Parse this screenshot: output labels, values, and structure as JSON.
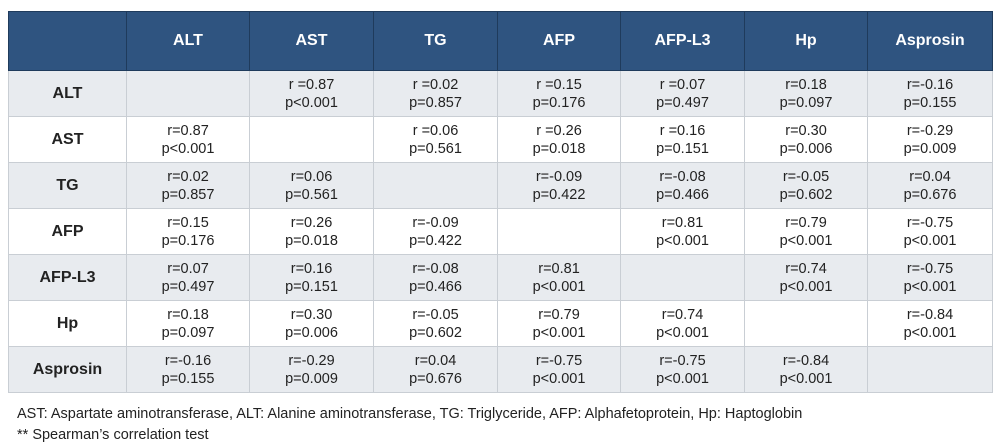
{
  "table": {
    "columns": [
      "",
      "ALT",
      "AST",
      "TG",
      "AFP",
      "AFP-L3",
      "Hp",
      "Asprosin"
    ],
    "rows": [
      {
        "label": "ALT",
        "cells": [
          {
            "r": "",
            "p": ""
          },
          {
            "r": "r =0.87",
            "p": "p<0.001"
          },
          {
            "r": "r =0.02",
            "p": "p=0.857"
          },
          {
            "r": "r =0.15",
            "p": "p=0.176"
          },
          {
            "r": "r =0.07",
            "p": "p=0.497"
          },
          {
            "r": "r=0.18",
            "p": "p=0.097"
          },
          {
            "r": "r=-0.16",
            "p": "p=0.155"
          }
        ]
      },
      {
        "label": "AST",
        "cells": [
          {
            "r": "r=0.87",
            "p": "p<0.001"
          },
          {
            "r": "",
            "p": ""
          },
          {
            "r": "r =0.06",
            "p": "p=0.561"
          },
          {
            "r": "r =0.26",
            "p": "p=0.018"
          },
          {
            "r": "r =0.16",
            "p": "p=0.151"
          },
          {
            "r": "r=0.30",
            "p": "p=0.006"
          },
          {
            "r": "r=-0.29",
            "p": "p=0.009"
          }
        ]
      },
      {
        "label": "TG",
        "cells": [
          {
            "r": "r=0.02",
            "p": "p=0.857"
          },
          {
            "r": "r=0.06",
            "p": "p=0.561"
          },
          {
            "r": "",
            "p": ""
          },
          {
            "r": "r=-0.09",
            "p": "p=0.422"
          },
          {
            "r": "r=-0.08",
            "p": "p=0.466"
          },
          {
            "r": "r=-0.05",
            "p": "p=0.602"
          },
          {
            "r": "r=0.04",
            "p": "p=0.676"
          }
        ]
      },
      {
        "label": "AFP",
        "cells": [
          {
            "r": "r=0.15",
            "p": "p=0.176"
          },
          {
            "r": "r=0.26",
            "p": "p=0.018"
          },
          {
            "r": "r=-0.09",
            "p": "p=0.422"
          },
          {
            "r": "",
            "p": ""
          },
          {
            "r": "r=0.81",
            "p": "p<0.001"
          },
          {
            "r": "r=0.79",
            "p": "p<0.001"
          },
          {
            "r": "r=-0.75",
            "p": "p<0.001"
          }
        ]
      },
      {
        "label": "AFP-L3",
        "cells": [
          {
            "r": "r=0.07",
            "p": "p=0.497"
          },
          {
            "r": "r=0.16",
            "p": "p=0.151"
          },
          {
            "r": "r=-0.08",
            "p": "p=0.466"
          },
          {
            "r": "r=0.81",
            "p": "p<0.001"
          },
          {
            "r": "",
            "p": ""
          },
          {
            "r": "r=0.74",
            "p": "p<0.001"
          },
          {
            "r": "r=-0.75",
            "p": "p<0.001"
          }
        ]
      },
      {
        "label": "Hp",
        "cells": [
          {
            "r": "r=0.18",
            "p": "p=0.097"
          },
          {
            "r": "r=0.30",
            "p": "p=0.006"
          },
          {
            "r": "r=-0.05",
            "p": "p=0.602"
          },
          {
            "r": "r=0.79",
            "p": "p<0.001"
          },
          {
            "r": "r=0.74",
            "p": "p<0.001"
          },
          {
            "r": "",
            "p": ""
          },
          {
            "r": "r=-0.84",
            "p": "p<0.001"
          }
        ]
      },
      {
        "label": "Asprosin",
        "cells": [
          {
            "r": "r=-0.16",
            "p": "p=0.155"
          },
          {
            "r": "r=-0.29",
            "p": "p=0.009"
          },
          {
            "r": "r=0.04",
            "p": "p=0.676"
          },
          {
            "r": "r=-0.75",
            "p": "p<0.001"
          },
          {
            "r": "r=-0.75",
            "p": "p<0.001"
          },
          {
            "r": "r=-0.84",
            "p": "p<0.001"
          },
          {
            "r": "",
            "p": ""
          }
        ]
      }
    ]
  },
  "footnotes": [
    "AST: Aspartate aminotransferase, ALT: Alanine aminotransferase, TG: Triglyceride, AFP: Alphafetoprotein, Hp: Haptoglobin",
    "** Spearman’s correlation test"
  ],
  "colors": {
    "header_bg": "#2f5480",
    "header_text": "#ffffff",
    "shaded_row": "#e8ebef",
    "border": "#c9ced4"
  }
}
